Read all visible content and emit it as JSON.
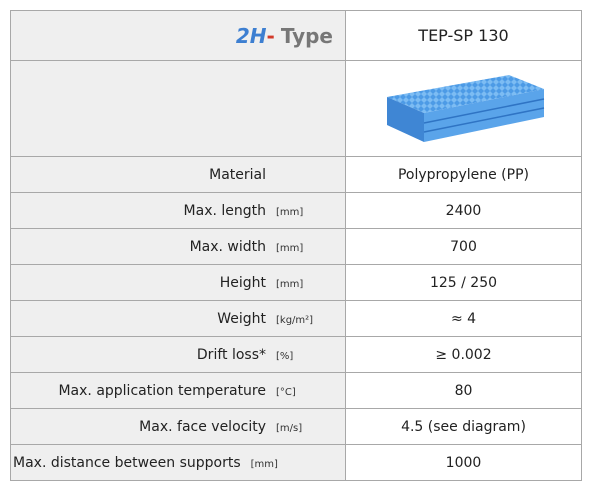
{
  "header": {
    "logo": "2H",
    "title": "Type",
    "product": "TEP-SP 130"
  },
  "rows": [
    {
      "label": "Material",
      "value": "Polypropylene (PP)"
    },
    {
      "label": "Max. length",
      "unit": "[mm]",
      "value": "2400"
    },
    {
      "label": "Max. width",
      "unit": "[mm]",
      "value": "700"
    },
    {
      "label": "Height",
      "unit": "[mm]",
      "value": "125 / 250"
    },
    {
      "label": "Weight",
      "unit": "[kg/m²]",
      "value": "≈ 4"
    },
    {
      "label": "Drift loss*",
      "unit": "[%]",
      "value": "≥ 0.002"
    },
    {
      "label": "Max. application temperature",
      "unit": "[°C]",
      "value": "80"
    },
    {
      "label": "Max. face velocity",
      "unit": "[m/s]",
      "value": "4.5 (see diagram)"
    },
    {
      "label": "Max. distance between supports",
      "unit": "[mm]",
      "value": "1000"
    }
  ]
}
